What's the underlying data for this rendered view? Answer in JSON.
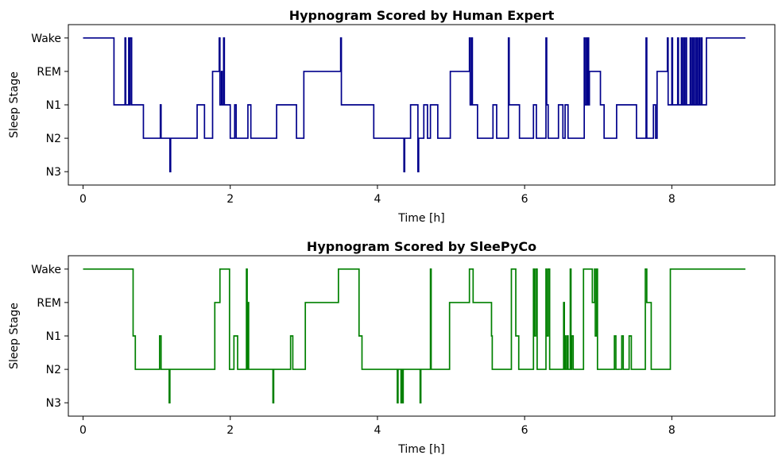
{
  "colors": {
    "blue": "#00008b",
    "green": "#008000"
  },
  "chart_data": [
    {
      "type": "line",
      "title": "Hypnogram Scored by Human Expert",
      "xlabel": "Time [h]",
      "ylabel": "Sleep Stage",
      "xlim": [
        -0.2,
        9.4
      ],
      "ylim": [
        -0.4,
        4.4
      ],
      "xticks": [
        0,
        2,
        4,
        6,
        8
      ],
      "xtick_labels": [
        "0",
        "2",
        "4",
        "6",
        "8"
      ],
      "yticks": [
        0,
        1,
        2,
        3,
        4
      ],
      "ytick_labels": [
        "N3",
        "N2",
        "N1",
        "REM",
        "Wake"
      ],
      "grid": false,
      "series": [
        {
          "color": "#00008b",
          "steps": [
            [
              0.0,
              4
            ],
            [
              0.42,
              2
            ],
            [
              0.57,
              4
            ],
            [
              0.58,
              2
            ],
            [
              0.62,
              4
            ],
            [
              0.63,
              2
            ],
            [
              0.64,
              4
            ],
            [
              0.66,
              2
            ],
            [
              0.82,
              1
            ],
            [
              1.05,
              2
            ],
            [
              1.06,
              1
            ],
            [
              1.18,
              0
            ],
            [
              1.19,
              1
            ],
            [
              1.55,
              2
            ],
            [
              1.65,
              1
            ],
            [
              1.76,
              3
            ],
            [
              1.85,
              4
            ],
            [
              1.86,
              2
            ],
            [
              1.88,
              3
            ],
            [
              1.89,
              2
            ],
            [
              1.91,
              4
            ],
            [
              1.92,
              2
            ],
            [
              2.0,
              1
            ],
            [
              2.06,
              2
            ],
            [
              2.08,
              1
            ],
            [
              2.24,
              2
            ],
            [
              2.28,
              1
            ],
            [
              2.63,
              2
            ],
            [
              2.9,
              1
            ],
            [
              3.0,
              3
            ],
            [
              3.5,
              4
            ],
            [
              3.51,
              2
            ],
            [
              3.72,
              2
            ],
            [
              3.95,
              1
            ],
            [
              4.36,
              0
            ],
            [
              4.37,
              1
            ],
            [
              4.45,
              2
            ],
            [
              4.55,
              0
            ],
            [
              4.56,
              1
            ],
            [
              4.63,
              2
            ],
            [
              4.68,
              1
            ],
            [
              4.72,
              2
            ],
            [
              4.82,
              1
            ],
            [
              4.99,
              3
            ],
            [
              5.25,
              4
            ],
            [
              5.26,
              2
            ],
            [
              5.28,
              4
            ],
            [
              5.29,
              2
            ],
            [
              5.36,
              1
            ],
            [
              5.57,
              2
            ],
            [
              5.62,
              1
            ],
            [
              5.78,
              4
            ],
            [
              5.79,
              2
            ],
            [
              5.93,
              1
            ],
            [
              6.12,
              2
            ],
            [
              6.16,
              1
            ],
            [
              6.29,
              4
            ],
            [
              6.3,
              2
            ],
            [
              6.32,
              1
            ],
            [
              6.46,
              2
            ],
            [
              6.52,
              1
            ],
            [
              6.55,
              2
            ],
            [
              6.59,
              1
            ],
            [
              6.81,
              4
            ],
            [
              6.82,
              2
            ],
            [
              6.84,
              4
            ],
            [
              6.85,
              2
            ],
            [
              6.86,
              4
            ],
            [
              6.87,
              2
            ],
            [
              6.88,
              3
            ],
            [
              7.03,
              2
            ],
            [
              7.08,
              1
            ],
            [
              7.25,
              2
            ],
            [
              7.52,
              1
            ],
            [
              7.65,
              4
            ],
            [
              7.66,
              1
            ],
            [
              7.75,
              2
            ],
            [
              7.78,
              1
            ],
            [
              7.8,
              3
            ],
            [
              7.94,
              4
            ],
            [
              7.95,
              2
            ],
            [
              8.0,
              4
            ],
            [
              8.01,
              2
            ],
            [
              8.08,
              4
            ],
            [
              8.09,
              2
            ],
            [
              8.13,
              4
            ],
            [
              8.14,
              2
            ],
            [
              8.16,
              4
            ],
            [
              8.17,
              2
            ],
            [
              8.19,
              4
            ],
            [
              8.2,
              2
            ],
            [
              8.25,
              4
            ],
            [
              8.26,
              2
            ],
            [
              8.28,
              4
            ],
            [
              8.29,
              2
            ],
            [
              8.31,
              4
            ],
            [
              8.32,
              2
            ],
            [
              8.34,
              4
            ],
            [
              8.35,
              2
            ],
            [
              8.37,
              4
            ],
            [
              8.38,
              2
            ],
            [
              8.4,
              4
            ],
            [
              8.41,
              2
            ],
            [
              8.47,
              4
            ],
            [
              9.0,
              4
            ]
          ]
        }
      ]
    },
    {
      "type": "line",
      "title": "Hypnogram Scored by SleePyCo",
      "xlabel": "Time [h]",
      "ylabel": "Sleep Stage",
      "xlim": [
        -0.2,
        9.4
      ],
      "ylim": [
        -0.4,
        4.4
      ],
      "xticks": [
        0,
        2,
        4,
        6,
        8
      ],
      "xtick_labels": [
        "0",
        "2",
        "4",
        "6",
        "8"
      ],
      "yticks": [
        0,
        1,
        2,
        3,
        4
      ],
      "ytick_labels": [
        "N3",
        "N2",
        "N1",
        "REM",
        "Wake"
      ],
      "grid": false,
      "series": [
        {
          "color": "#008000",
          "steps": [
            [
              0.0,
              4
            ],
            [
              0.68,
              2
            ],
            [
              0.71,
              1
            ],
            [
              1.04,
              2
            ],
            [
              1.06,
              1
            ],
            [
              1.17,
              0
            ],
            [
              1.18,
              1
            ],
            [
              1.79,
              3
            ],
            [
              1.86,
              4
            ],
            [
              1.99,
              1
            ],
            [
              2.05,
              2
            ],
            [
              2.1,
              1
            ],
            [
              2.22,
              4
            ],
            [
              2.23,
              1
            ],
            [
              2.24,
              3
            ],
            [
              2.25,
              1
            ],
            [
              2.58,
              0
            ],
            [
              2.59,
              1
            ],
            [
              2.82,
              2
            ],
            [
              2.85,
              1
            ],
            [
              3.02,
              3
            ],
            [
              3.47,
              4
            ],
            [
              3.75,
              2
            ],
            [
              3.79,
              1
            ],
            [
              4.27,
              0
            ],
            [
              4.28,
              1
            ],
            [
              4.32,
              0
            ],
            [
              4.33,
              1
            ],
            [
              4.34,
              0
            ],
            [
              4.35,
              1
            ],
            [
              4.58,
              0
            ],
            [
              4.59,
              1
            ],
            [
              4.72,
              4
            ],
            [
              4.73,
              1
            ],
            [
              4.77,
              1
            ],
            [
              4.98,
              3
            ],
            [
              5.25,
              4
            ],
            [
              5.3,
              3
            ],
            [
              5.55,
              2
            ],
            [
              5.56,
              1
            ],
            [
              5.82,
              4
            ],
            [
              5.88,
              2
            ],
            [
              5.92,
              1
            ],
            [
              6.12,
              4
            ],
            [
              6.13,
              2
            ],
            [
              6.15,
              4
            ],
            [
              6.17,
              1
            ],
            [
              6.29,
              4
            ],
            [
              6.3,
              2
            ],
            [
              6.32,
              4
            ],
            [
              6.34,
              1
            ],
            [
              6.5,
              1
            ],
            [
              6.51,
              1
            ],
            [
              6.53,
              3
            ],
            [
              6.54,
              1
            ],
            [
              6.55,
              2
            ],
            [
              6.56,
              1
            ],
            [
              6.58,
              2
            ],
            [
              6.59,
              1
            ],
            [
              6.62,
              4
            ],
            [
              6.63,
              1
            ],
            [
              6.64,
              2
            ],
            [
              6.66,
              1
            ],
            [
              6.8,
              4
            ],
            [
              6.92,
              3
            ],
            [
              6.95,
              4
            ],
            [
              6.96,
              2
            ],
            [
              6.98,
              4
            ],
            [
              6.99,
              1
            ],
            [
              7.22,
              2
            ],
            [
              7.24,
              1
            ],
            [
              7.32,
              2
            ],
            [
              7.34,
              1
            ],
            [
              7.42,
              2
            ],
            [
              7.45,
              1
            ],
            [
              7.64,
              4
            ],
            [
              7.66,
              3
            ],
            [
              7.72,
              1
            ],
            [
              7.8,
              1
            ],
            [
              7.98,
              4
            ],
            [
              9.0,
              4
            ]
          ]
        }
      ]
    }
  ]
}
